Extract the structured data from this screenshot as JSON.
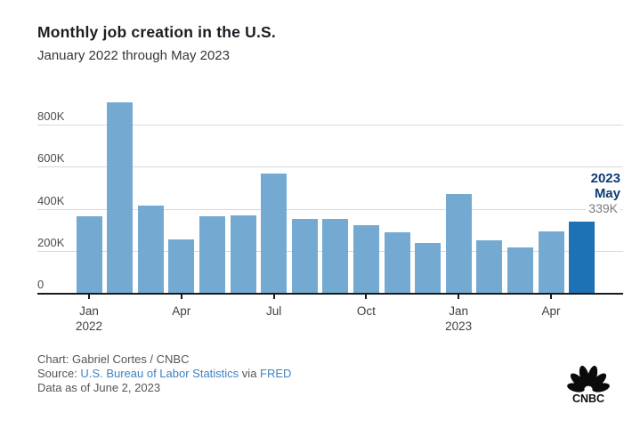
{
  "header": {
    "title": "Monthly job creation in the U.S.",
    "subtitle": "January 2022 through May 2023"
  },
  "chart_data": {
    "type": "bar",
    "title": "Monthly job creation in the U.S.",
    "subtitle": "January 2022 through May 2023",
    "unit": "thousands of jobs",
    "x": [
      "Jan 2022",
      "Feb 2022",
      "Mar 2022",
      "Apr 2022",
      "May 2022",
      "Jun 2022",
      "Jul 2022",
      "Aug 2022",
      "Sep 2022",
      "Oct 2022",
      "Nov 2022",
      "Dec 2022",
      "Jan 2023",
      "Feb 2023",
      "Mar 2023",
      "Apr 2023",
      "May 2023"
    ],
    "values_k": [
      364,
      904,
      414,
      254,
      364,
      370,
      568,
      352,
      350,
      324,
      290,
      239,
      472,
      248,
      217,
      294,
      339
    ],
    "highlight_index": 16,
    "ylim_k": [
      0,
      950
    ],
    "grid": true,
    "legend": false,
    "y_ticks": [
      {
        "value": 0,
        "label": "0"
      },
      {
        "value": 200,
        "label": "200K"
      },
      {
        "value": 400,
        "label": "400K"
      },
      {
        "value": 600,
        "label": "600K"
      },
      {
        "value": 800,
        "label": "800K"
      }
    ],
    "x_ticks": [
      {
        "index": 0,
        "line1": "Jan",
        "line2": "2022"
      },
      {
        "index": 3,
        "line1": "Apr",
        "line2": ""
      },
      {
        "index": 6,
        "line1": "Jul",
        "line2": ""
      },
      {
        "index": 9,
        "line1": "Oct",
        "line2": ""
      },
      {
        "index": 12,
        "line1": "Jan",
        "line2": "2023"
      },
      {
        "index": 15,
        "line1": "Apr",
        "line2": ""
      }
    ]
  },
  "annotation": {
    "line1": "2023",
    "line2": "May",
    "value": "339K"
  },
  "footer": {
    "credit": "Chart: Gabriel Cortes / CNBC",
    "source_prefix": "Source: ",
    "source_link": "U.S. Bureau of Labor Statistics",
    "source_via": " via ",
    "source_link2": "FRED",
    "data_as_of": "Data as of June 2, 2023"
  },
  "logo": {
    "text": "CNBC"
  },
  "colors": {
    "bar": "#74a9d2",
    "bar_highlight": "#1d72b5",
    "annotation_accent": "#0d3d73",
    "annotation_value": "#7b7c85",
    "link": "#3e82c4",
    "grid": "#d9d9d9",
    "axis": "#1a1a1a",
    "text_muted": "#54555c"
  }
}
